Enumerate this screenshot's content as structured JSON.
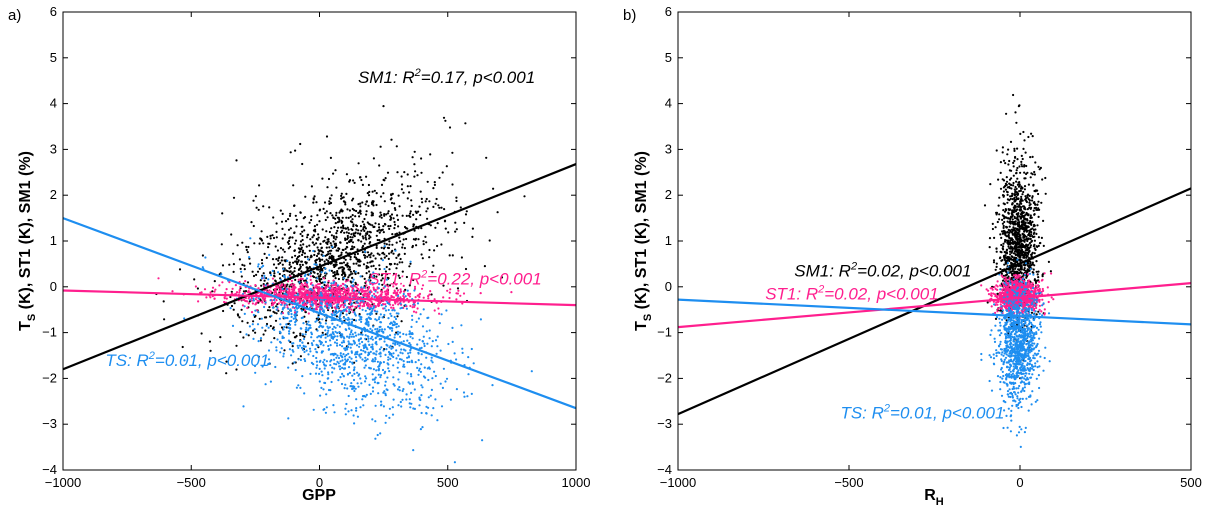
{
  "chart_data": [
    {
      "type": "scatter",
      "panel_label": "a)",
      "xlabel": "GPP",
      "ylabel": "T",
      "ylabel_sub": "S",
      "ylabel_rest": " (K), ST1 (K), SM1 (%)",
      "xlim": [
        -1000,
        1000
      ],
      "ylim": [
        -4,
        6
      ],
      "xticks": [
        -1000,
        -500,
        0,
        500,
        1000
      ],
      "yticks": [
        -4,
        -3,
        -2,
        -1,
        0,
        1,
        2,
        3,
        4,
        5,
        6
      ],
      "grid": false,
      "series": [
        {
          "name": "SM1",
          "color": "#000000",
          "cloud": {
            "cx": 60,
            "sx": 210,
            "cy": 0.55,
            "sy": 0.75,
            "n": 1400,
            "slope": 0.0018,
            "skew": 0.9
          },
          "fit": {
            "x": [
              -1000,
              1000
            ],
            "y": [
              -1.8,
              2.68
            ]
          },
          "annotation": {
            "prefix": "SM1: R",
            "sup": "2",
            "suffix": "=0.17, p<0.001",
            "x": 150,
            "y": 4.45
          }
        },
        {
          "name": "ST1",
          "color": "#ff1f8e",
          "cloud": {
            "cx": 40,
            "sx": 200,
            "cy": -0.2,
            "sy": 0.14,
            "n": 1100,
            "slope": -0.00012,
            "skew": 0
          },
          "fit": {
            "x": [
              -1000,
              1000
            ],
            "y": [
              -0.08,
              -0.4
            ]
          },
          "annotation": {
            "prefix": "ST1: R",
            "sup": "2",
            "suffix": "=0.22, p<0.001",
            "x": 190,
            "y": 0.05
          }
        },
        {
          "name": "TS",
          "color": "#1e8ef0",
          "cloud": {
            "cx": 120,
            "sx": 190,
            "cy": -1.05,
            "sy": 0.7,
            "n": 1200,
            "slope": -0.0015,
            "skew": -0.6
          },
          "fit": {
            "x": [
              -1000,
              1000
            ],
            "y": [
              1.5,
              -2.65
            ]
          },
          "annotation": {
            "prefix": "TS: R",
            "sup": "2",
            "suffix": "=0.01, p<0.001",
            "x": -835,
            "y": -1.73
          }
        }
      ]
    },
    {
      "type": "scatter",
      "panel_label": "b)",
      "xlabel": "R",
      "xlabel_sub": "H",
      "ylabel": "T",
      "ylabel_sub": "S",
      "ylabel_rest": " (K), ST1 (K), SM1 (%)",
      "xlim": [
        -1000,
        500
      ],
      "ylim": [
        -4,
        6
      ],
      "xticks": [
        -1000,
        -500,
        0,
        500
      ],
      "yticks": [
        -4,
        -3,
        -2,
        -1,
        0,
        1,
        2,
        3,
        4,
        5,
        6
      ],
      "grid": false,
      "series": [
        {
          "name": "SM1",
          "color": "#000000",
          "cloud": {
            "cx": -5,
            "sx": 28,
            "cy": 0.8,
            "sy": 0.85,
            "n": 1300,
            "slope": 0,
            "skew": 0.9
          },
          "fit": {
            "x": [
              -1000,
              500
            ],
            "y": [
              -2.78,
              2.15
            ]
          },
          "annotation": {
            "prefix": "SM1: R",
            "sup": "2",
            "suffix": "=0.02, p<0.001",
            "x": -660,
            "y": 0.22
          }
        },
        {
          "name": "ST1",
          "color": "#ff1f8e",
          "cloud": {
            "cx": -5,
            "sx": 32,
            "cy": -0.2,
            "sy": 0.18,
            "n": 900,
            "slope": 0,
            "skew": 0
          },
          "fit": {
            "x": [
              -1000,
              500
            ],
            "y": [
              -0.88,
              0.08
            ]
          },
          "annotation": {
            "prefix": "ST1: R",
            "sup": "2",
            "suffix": "=0.02, p<0.001",
            "x": -745,
            "y": -0.28
          }
        },
        {
          "name": "TS",
          "color": "#1e8ef0",
          "cloud": {
            "cx": -5,
            "sx": 30,
            "cy": -1.2,
            "sy": 0.65,
            "n": 1000,
            "slope": 0,
            "skew": -0.5
          },
          "fit": {
            "x": [
              -1000,
              500
            ],
            "y": [
              -0.28,
              -0.82
            ]
          },
          "annotation": {
            "prefix": "TS: R",
            "sup": "2",
            "suffix": "=0.01, p<0.001",
            "x": -525,
            "y": -2.88
          }
        }
      ]
    }
  ]
}
